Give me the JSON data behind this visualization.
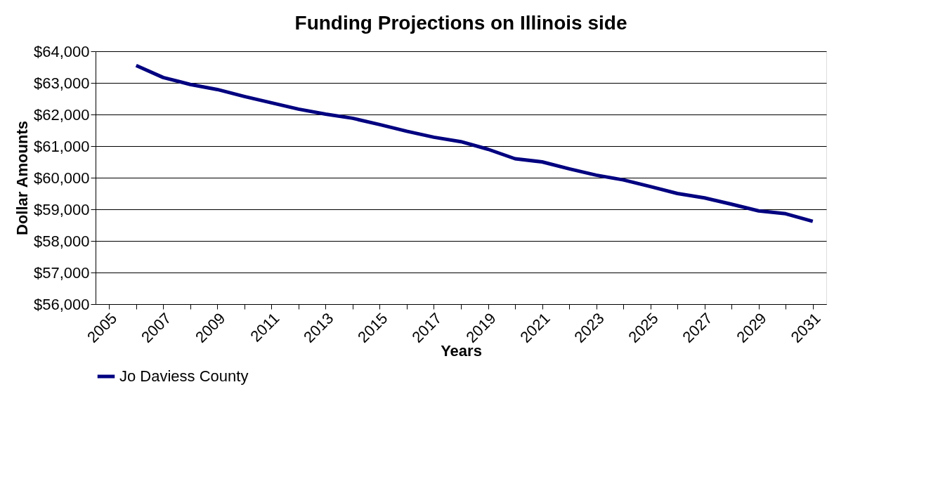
{
  "chart_data": {
    "type": "line",
    "title": "Funding Projections on Illinois side",
    "xlabel": "Years",
    "ylabel": "Dollar Amounts",
    "categories": [
      "2005",
      null,
      "2007",
      null,
      "2009",
      null,
      "2011",
      null,
      "2013",
      null,
      "2015",
      null,
      "2017",
      null,
      "2019",
      null,
      "2021",
      null,
      "2023",
      null,
      "2025",
      null,
      "2027",
      null,
      "2029",
      null,
      "2031"
    ],
    "series": [
      {
        "name": "Jo Daviess County",
        "color": "#000080",
        "values": [
          null,
          63550,
          63170,
          62950,
          62790,
          62570,
          62370,
          62170,
          62010,
          61880,
          61680,
          61470,
          61280,
          61140,
          60900,
          60600,
          60500,
          60280,
          60080,
          59930,
          59720,
          59500,
          59360,
          59160,
          58950,
          58860,
          58620
        ]
      }
    ],
    "ylim": [
      56000,
      64000
    ],
    "yticks": [
      {
        "value": 56000,
        "label": "$56,000"
      },
      {
        "value": 57000,
        "label": "$57,000"
      },
      {
        "value": 58000,
        "label": "$58,000"
      },
      {
        "value": 59000,
        "label": "$59,000"
      },
      {
        "value": 60000,
        "label": "$60,000"
      },
      {
        "value": 61000,
        "label": "$61,000"
      },
      {
        "value": 62000,
        "label": "$62,000"
      },
      {
        "value": 63000,
        "label": "$63,000"
      },
      {
        "value": 64000,
        "label": "$64,000"
      }
    ],
    "grid": "y",
    "legend": "bottom",
    "marker": "none",
    "line_style": "solid"
  }
}
